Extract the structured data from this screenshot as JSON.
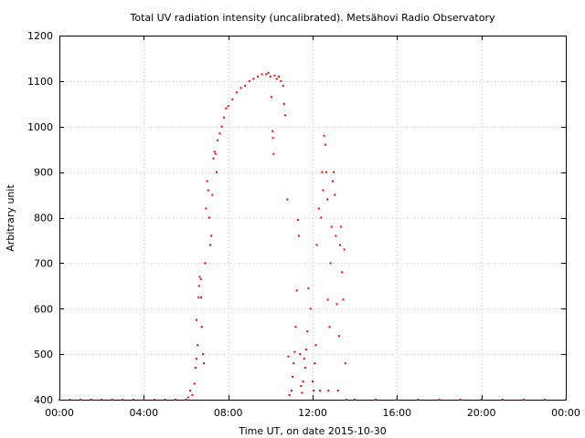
{
  "chart_data": {
    "type": "scatter",
    "title": "Total UV radiation intensity (uncalibrated). Metsähovi Radio Observatory",
    "xlabel": "Time UT, on date 2015-10-30",
    "ylabel": "Arbitrary unit",
    "x_unit": "hours UT",
    "xlim": [
      0,
      24
    ],
    "ylim": [
      400,
      1200
    ],
    "xticks": [
      {
        "value": 0,
        "label": "00:00"
      },
      {
        "value": 4,
        "label": "04:00"
      },
      {
        "value": 8,
        "label": "08:00"
      },
      {
        "value": 12,
        "label": "12:00"
      },
      {
        "value": 16,
        "label": "16:00"
      },
      {
        "value": 20,
        "label": "20:00"
      },
      {
        "value": 24,
        "label": "00:00"
      }
    ],
    "yticks": [
      {
        "value": 400,
        "label": "400"
      },
      {
        "value": 500,
        "label": "500"
      },
      {
        "value": 600,
        "label": "600"
      },
      {
        "value": 700,
        "label": "700"
      },
      {
        "value": 800,
        "label": "800"
      },
      {
        "value": 900,
        "label": "900"
      },
      {
        "value": 1000,
        "label": "1000"
      },
      {
        "value": 1100,
        "label": "1100"
      },
      {
        "value": 1200,
        "label": "1200"
      }
    ],
    "grid": true,
    "marker_color": "#ff0000",
    "series": [
      {
        "points": [
          [
            0.0,
            400
          ],
          [
            0.5,
            400
          ],
          [
            1.0,
            400
          ],
          [
            1.5,
            400
          ],
          [
            2.0,
            400
          ],
          [
            2.5,
            400
          ],
          [
            3.0,
            400
          ],
          [
            3.5,
            400
          ],
          [
            4.0,
            400
          ],
          [
            4.5,
            400
          ],
          [
            5.0,
            400
          ],
          [
            5.5,
            400
          ],
          [
            6.0,
            400
          ],
          [
            6.1,
            405
          ],
          [
            6.2,
            420
          ],
          [
            6.3,
            410
          ],
          [
            6.4,
            435
          ],
          [
            6.45,
            470
          ],
          [
            6.5,
            490
          ],
          [
            6.5,
            575
          ],
          [
            6.55,
            520
          ],
          [
            6.6,
            625
          ],
          [
            6.62,
            650
          ],
          [
            6.65,
            670
          ],
          [
            6.7,
            665
          ],
          [
            6.72,
            625
          ],
          [
            6.75,
            560
          ],
          [
            6.8,
            500
          ],
          [
            6.85,
            480
          ],
          [
            6.9,
            700
          ],
          [
            6.95,
            820
          ],
          [
            7.0,
            880
          ],
          [
            7.05,
            860
          ],
          [
            7.1,
            800
          ],
          [
            7.15,
            740
          ],
          [
            7.2,
            760
          ],
          [
            7.25,
            850
          ],
          [
            7.3,
            930
          ],
          [
            7.35,
            945
          ],
          [
            7.4,
            940
          ],
          [
            7.45,
            900
          ],
          [
            7.5,
            970
          ],
          [
            7.6,
            985
          ],
          [
            7.7,
            1000
          ],
          [
            7.8,
            1020
          ],
          [
            7.9,
            1040
          ],
          [
            8.0,
            1045
          ],
          [
            8.2,
            1060
          ],
          [
            8.4,
            1075
          ],
          [
            8.6,
            1085
          ],
          [
            8.8,
            1090
          ],
          [
            9.0,
            1100
          ],
          [
            9.2,
            1105
          ],
          [
            9.4,
            1110
          ],
          [
            9.6,
            1115
          ],
          [
            9.8,
            1115
          ],
          [
            9.9,
            1118
          ],
          [
            10.0,
            1110
          ],
          [
            10.05,
            1065
          ],
          [
            10.1,
            990
          ],
          [
            10.12,
            975
          ],
          [
            10.15,
            940
          ],
          [
            10.2,
            1112
          ],
          [
            10.3,
            1105
          ],
          [
            10.4,
            1110
          ],
          [
            10.5,
            1100
          ],
          [
            10.6,
            1090
          ],
          [
            10.65,
            1050
          ],
          [
            10.7,
            1025
          ],
          [
            10.8,
            840
          ],
          [
            10.85,
            495
          ],
          [
            10.9,
            410
          ],
          [
            11.0,
            420
          ],
          [
            11.05,
            450
          ],
          [
            11.1,
            480
          ],
          [
            11.15,
            505
          ],
          [
            11.2,
            560
          ],
          [
            11.25,
            640
          ],
          [
            11.3,
            795
          ],
          [
            11.35,
            760
          ],
          [
            11.4,
            500
          ],
          [
            11.45,
            430
          ],
          [
            11.5,
            415
          ],
          [
            11.55,
            440
          ],
          [
            11.6,
            490
          ],
          [
            11.65,
            470
          ],
          [
            11.7,
            510
          ],
          [
            11.75,
            550
          ],
          [
            11.8,
            645
          ],
          [
            11.9,
            600
          ],
          [
            12.0,
            440
          ],
          [
            12.05,
            420
          ],
          [
            12.1,
            480
          ],
          [
            12.15,
            520
          ],
          [
            12.2,
            740
          ],
          [
            12.3,
            820
          ],
          [
            12.35,
            420
          ],
          [
            12.4,
            800
          ],
          [
            12.45,
            900
          ],
          [
            12.5,
            860
          ],
          [
            12.55,
            980
          ],
          [
            12.6,
            960
          ],
          [
            12.65,
            900
          ],
          [
            12.7,
            840
          ],
          [
            12.72,
            620
          ],
          [
            12.75,
            420
          ],
          [
            12.8,
            560
          ],
          [
            12.85,
            700
          ],
          [
            12.9,
            780
          ],
          [
            12.95,
            880
          ],
          [
            13.0,
            900
          ],
          [
            13.05,
            850
          ],
          [
            13.1,
            760
          ],
          [
            13.15,
            610
          ],
          [
            13.2,
            420
          ],
          [
            13.25,
            540
          ],
          [
            13.3,
            740
          ],
          [
            13.35,
            780
          ],
          [
            13.4,
            680
          ],
          [
            13.45,
            620
          ],
          [
            13.5,
            730
          ],
          [
            13.55,
            480
          ],
          [
            13.6,
            400
          ],
          [
            14.0,
            400
          ],
          [
            15.0,
            400
          ],
          [
            16.0,
            400
          ],
          [
            17.0,
            400
          ],
          [
            18.0,
            400
          ],
          [
            19.0,
            400
          ],
          [
            20.0,
            400
          ],
          [
            21.0,
            400
          ],
          [
            22.0,
            400
          ],
          [
            23.0,
            400
          ],
          [
            24.0,
            400
          ]
        ]
      }
    ]
  }
}
